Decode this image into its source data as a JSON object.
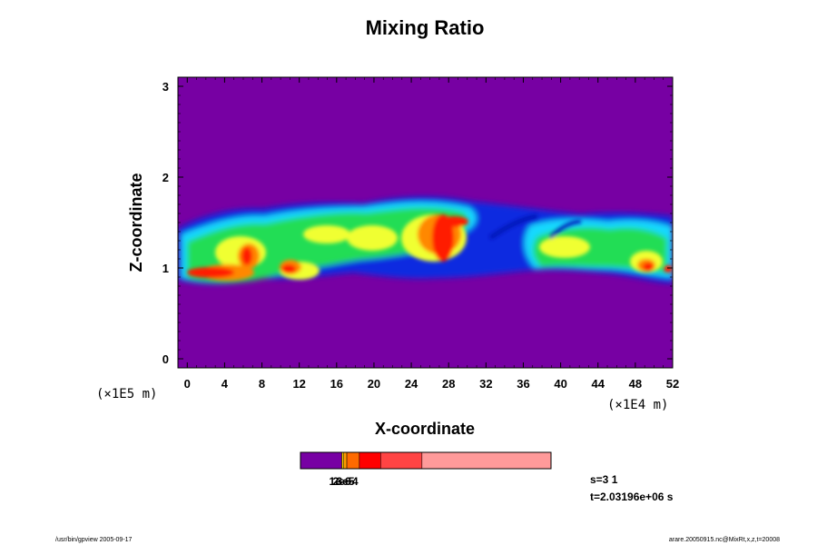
{
  "chart_data": {
    "type": "heatmap",
    "title": "Mixing Ratio",
    "xlabel": "X-coordinate",
    "ylabel": "Z-coordinate",
    "x_scale_label": "(×1E4 m)",
    "y_scale_label": "(×1E5 m)",
    "xlim": [
      -1,
      52
    ],
    "ylim": [
      -0.1,
      3.1
    ],
    "x_ticks": [
      "0",
      "4",
      "8",
      "12",
      "16",
      "20",
      "24",
      "28",
      "32",
      "36",
      "40",
      "44",
      "48",
      "52"
    ],
    "y_ticks": [
      "0",
      "1",
      "2",
      "3"
    ],
    "background_color": "#7700a3",
    "colorbar": {
      "segments": [
        {
          "color": "#7700a3",
          "fraction": 0.165
        },
        {
          "color": "#ffcc00",
          "fraction": 0.008
        },
        {
          "color": "#ff9900",
          "fraction": 0.012
        },
        {
          "color": "#ff6a00",
          "fraction": 0.05
        },
        {
          "color": "#ff0000",
          "fraction": 0.085
        },
        {
          "color": "#ff4444",
          "fraction": 0.165
        },
        {
          "color": "#ff9a9a",
          "fraction": 0.515
        }
      ],
      "labels": [
        "1e-6",
        "2e-5",
        "3e-4"
      ]
    },
    "field": [
      {
        "x": 0.5,
        "z": 0.95,
        "value": "high",
        "color": "#ff0000"
      },
      {
        "x": 4.5,
        "z": 1.0,
        "value": "high",
        "color": "#ff0000"
      },
      {
        "x": 6.5,
        "z": 1.15,
        "value": "high",
        "color": "#ff0000"
      },
      {
        "x": 10.5,
        "z": 1.0,
        "value": "high",
        "color": "#ff0000"
      },
      {
        "x": 26.0,
        "z": 1.2,
        "value": "high",
        "color": "#ff0000"
      },
      {
        "x": 27.0,
        "z": 1.55,
        "value": "high",
        "color": "#ff0000"
      },
      {
        "x": 49.0,
        "z": 1.0,
        "value": "high",
        "color": "#ff0000"
      },
      {
        "x": 14.0,
        "z": 1.4,
        "value": "medium",
        "color": "#ffff00"
      },
      {
        "x": 22.0,
        "z": 1.45,
        "value": "medium",
        "color": "#ffff00"
      },
      {
        "x": 42.0,
        "z": 1.3,
        "value": "medium",
        "color": "#ffff00"
      },
      {
        "x": 36.5,
        "z": 1.35,
        "value": "low",
        "color": "#0033dd"
      }
    ]
  },
  "info": {
    "step": "s=3 1",
    "time": "t=2.03196e+06 s"
  },
  "footer": {
    "left": "/usr/bin/gpview 2005-09-17",
    "right": "arare.20050915.nc@MixRt,x,z,t=20008"
  }
}
